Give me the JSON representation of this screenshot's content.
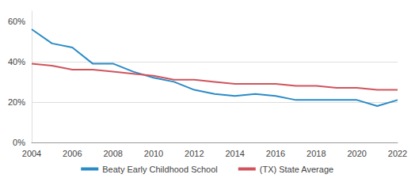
{
  "chart_data": {
    "type": "line",
    "x": [
      2004,
      2005,
      2006,
      2007,
      2008,
      2009,
      2010,
      2011,
      2012,
      2013,
      2014,
      2015,
      2016,
      2017,
      2018,
      2019,
      2020,
      2021,
      2022
    ],
    "series": [
      {
        "name": "Beaty Early Childhood School",
        "color": "#2a8bc6",
        "values": [
          56,
          49,
          47,
          39,
          39,
          35,
          32,
          30,
          26,
          24,
          23,
          24,
          23,
          21,
          21,
          21,
          21,
          18,
          21
        ]
      },
      {
        "name": "(TX) State Average",
        "color": "#d0545c",
        "values": [
          39,
          38,
          36,
          36,
          35,
          34,
          33,
          31,
          31,
          30,
          29,
          29,
          29,
          28,
          28,
          27,
          27,
          26,
          26
        ]
      }
    ],
    "xlim": [
      2004,
      2022
    ],
    "xticks": [
      2004,
      2006,
      2008,
      2010,
      2012,
      2014,
      2016,
      2018,
      2020,
      2022
    ],
    "ylim": [
      0,
      65
    ],
    "yticks": [
      {
        "value": 0,
        "label": "0%"
      },
      {
        "value": 20,
        "label": "20%"
      },
      {
        "value": 40,
        "label": "40%"
      },
      {
        "value": 60,
        "label": "60%"
      }
    ],
    "grid": true,
    "legend": "bottom",
    "marker": "none",
    "line_style": "solid"
  }
}
